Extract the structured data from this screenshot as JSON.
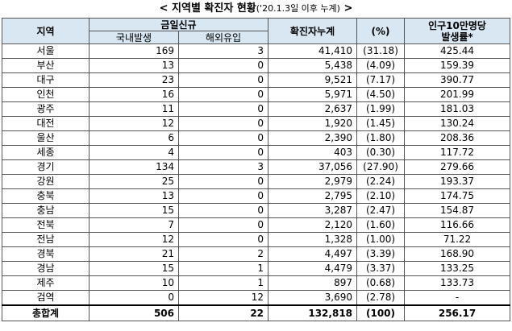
{
  "title": {
    "main": "< 지역별 확진자 현황",
    "note": "('20.1.3일 이후 누계)",
    "suffix": " >"
  },
  "headers": {
    "region": "지역",
    "new_cases": "금일신규",
    "domestic": "국내발생",
    "imported": "해외유입",
    "cumulative": "확진자누계",
    "percent": "(%)",
    "rate_line1": "인구10만명당",
    "rate_line2": "발생률*"
  },
  "rows": [
    {
      "region": "서울",
      "domestic": "169",
      "imported": "3",
      "cumulative": "41,410",
      "percent": "(31.18)",
      "rate": "425.44"
    },
    {
      "region": "부산",
      "domestic": "13",
      "imported": "0",
      "cumulative": "5,438",
      "percent": "(4.09)",
      "rate": "159.39"
    },
    {
      "region": "대구",
      "domestic": "23",
      "imported": "0",
      "cumulative": "9,521",
      "percent": "(7.17)",
      "rate": "390.77"
    },
    {
      "region": "인천",
      "domestic": "16",
      "imported": "0",
      "cumulative": "5,971",
      "percent": "(4.50)",
      "rate": "201.99"
    },
    {
      "region": "광주",
      "domestic": "11",
      "imported": "0",
      "cumulative": "2,637",
      "percent": "(1.99)",
      "rate": "181.03"
    },
    {
      "region": "대전",
      "domestic": "12",
      "imported": "0",
      "cumulative": "1,920",
      "percent": "(1.45)",
      "rate": "130.24"
    },
    {
      "region": "울산",
      "domestic": "6",
      "imported": "0",
      "cumulative": "2,390",
      "percent": "(1.80)",
      "rate": "208.36"
    },
    {
      "region": "세종",
      "domestic": "4",
      "imported": "0",
      "cumulative": "403",
      "percent": "(0.30)",
      "rate": "117.72"
    },
    {
      "region": "경기",
      "domestic": "134",
      "imported": "3",
      "cumulative": "37,056",
      "percent": "(27.90)",
      "rate": "279.66"
    },
    {
      "region": "강원",
      "domestic": "25",
      "imported": "0",
      "cumulative": "2,979",
      "percent": "(2.24)",
      "rate": "193.37"
    },
    {
      "region": "충북",
      "domestic": "13",
      "imported": "0",
      "cumulative": "2,795",
      "percent": "(2.10)",
      "rate": "174.75"
    },
    {
      "region": "충남",
      "domestic": "15",
      "imported": "0",
      "cumulative": "3,287",
      "percent": "(2.47)",
      "rate": "154.87"
    },
    {
      "region": "전북",
      "domestic": "7",
      "imported": "0",
      "cumulative": "2,120",
      "percent": "(1.60)",
      "rate": "116.66"
    },
    {
      "region": "전남",
      "domestic": "12",
      "imported": "0",
      "cumulative": "1,328",
      "percent": "(1.00)",
      "rate": "71.22"
    },
    {
      "region": "경북",
      "domestic": "21",
      "imported": "2",
      "cumulative": "4,497",
      "percent": "(3.39)",
      "rate": "168.90"
    },
    {
      "region": "경남",
      "domestic": "15",
      "imported": "1",
      "cumulative": "4,479",
      "percent": "(3.37)",
      "rate": "133.25"
    },
    {
      "region": "제주",
      "domestic": "10",
      "imported": "1",
      "cumulative": "897",
      "percent": "(0.68)",
      "rate": "133.73"
    },
    {
      "region": "검역",
      "domestic": "0",
      "imported": "12",
      "cumulative": "3,690",
      "percent": "(2.78)",
      "rate": "-"
    }
  ],
  "total": {
    "region": "총합계",
    "domestic": "506",
    "imported": "22",
    "cumulative": "132,818",
    "percent": "(100)",
    "rate": "256.17"
  },
  "colors": {
    "header_bg": "#d8e7f2",
    "border": "#555555"
  }
}
